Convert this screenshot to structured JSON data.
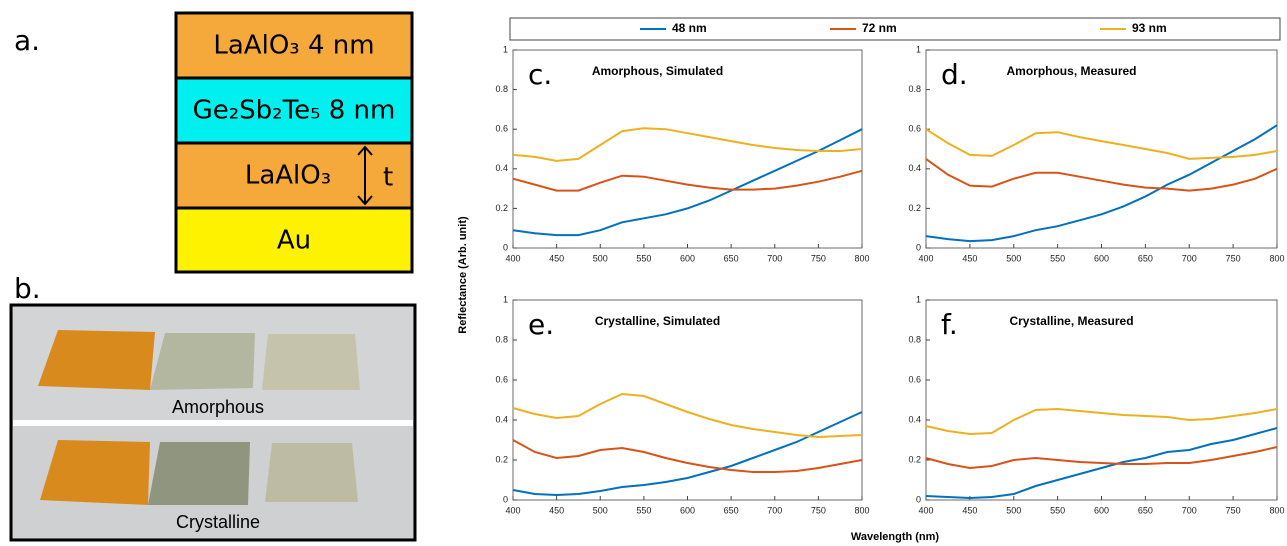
{
  "figure_labels": {
    "a": "a.",
    "b": "b."
  },
  "stack": {
    "layers": [
      "LaAlO₃ 4 nm",
      "Ge₂Sb₂Te₅ 8 nm",
      "LaAlO₃",
      "Au"
    ],
    "thickness": "t"
  },
  "photo": {
    "top": "Amorphous",
    "bottom": "Crystalline"
  },
  "legend": [
    {
      "name": "48 nm",
      "color": "#0072bd"
    },
    {
      "name": "72 nm",
      "color": "#d95319"
    },
    {
      "name": "93 nm",
      "color": "#edb120"
    }
  ],
  "ylabel": "Reflectance (Arb. unit)",
  "xlabel": "Wavelength (nm)",
  "chart_data": [
    {
      "type": "line",
      "panel": "c.",
      "title": "Amorphous, Simulated",
      "x": [
        400,
        425,
        450,
        475,
        500,
        525,
        550,
        575,
        600,
        625,
        650,
        675,
        700,
        725,
        750,
        775,
        800
      ],
      "xlim": [
        400,
        800
      ],
      "ylim": [
        0,
        1
      ],
      "xticks": [
        400,
        450,
        500,
        550,
        600,
        650,
        700,
        750,
        800
      ],
      "yticks": [
        0,
        0.2,
        0.4,
        0.6,
        0.8,
        1
      ],
      "series": [
        {
          "color": "#0072bd",
          "values": [
            0.09,
            0.075,
            0.065,
            0.065,
            0.09,
            0.13,
            0.15,
            0.17,
            0.2,
            0.24,
            0.29,
            0.34,
            0.39,
            0.44,
            0.49,
            0.545,
            0.6
          ]
        },
        {
          "color": "#d95319",
          "values": [
            0.35,
            0.32,
            0.29,
            0.29,
            0.33,
            0.365,
            0.36,
            0.34,
            0.32,
            0.305,
            0.295,
            0.295,
            0.3,
            0.315,
            0.335,
            0.36,
            0.39
          ]
        },
        {
          "color": "#edb120",
          "values": [
            0.47,
            0.46,
            0.44,
            0.45,
            0.52,
            0.59,
            0.605,
            0.6,
            0.58,
            0.56,
            0.54,
            0.52,
            0.505,
            0.495,
            0.49,
            0.49,
            0.5
          ]
        }
      ]
    },
    {
      "type": "line",
      "panel": "d.",
      "title": "Amorphous, Measured",
      "x": [
        400,
        425,
        450,
        475,
        500,
        525,
        550,
        575,
        600,
        625,
        650,
        675,
        700,
        725,
        750,
        775,
        800
      ],
      "xlim": [
        400,
        800
      ],
      "ylim": [
        0,
        1
      ],
      "xticks": [
        400,
        450,
        500,
        550,
        600,
        650,
        700,
        750,
        800
      ],
      "yticks": [
        0,
        0.2,
        0.4,
        0.6,
        0.8,
        1
      ],
      "series": [
        {
          "color": "#0072bd",
          "values": [
            0.06,
            0.045,
            0.035,
            0.04,
            0.06,
            0.09,
            0.11,
            0.14,
            0.17,
            0.21,
            0.26,
            0.32,
            0.37,
            0.43,
            0.49,
            0.55,
            0.62
          ]
        },
        {
          "color": "#d95319",
          "values": [
            0.45,
            0.37,
            0.315,
            0.31,
            0.35,
            0.38,
            0.38,
            0.36,
            0.34,
            0.32,
            0.305,
            0.3,
            0.29,
            0.3,
            0.32,
            0.35,
            0.4
          ]
        },
        {
          "color": "#edb120",
          "values": [
            0.6,
            0.53,
            0.47,
            0.465,
            0.52,
            0.58,
            0.585,
            0.56,
            0.54,
            0.52,
            0.5,
            0.48,
            0.45,
            0.455,
            0.46,
            0.47,
            0.49
          ]
        }
      ]
    },
    {
      "type": "line",
      "panel": "e.",
      "title": "Crystalline, Simulated",
      "x": [
        400,
        425,
        450,
        475,
        500,
        525,
        550,
        575,
        600,
        625,
        650,
        675,
        700,
        725,
        750,
        775,
        800
      ],
      "xlim": [
        400,
        800
      ],
      "ylim": [
        0,
        1
      ],
      "xticks": [
        400,
        450,
        500,
        550,
        600,
        650,
        700,
        750,
        800
      ],
      "yticks": [
        0,
        0.2,
        0.4,
        0.6,
        0.8,
        1
      ],
      "series": [
        {
          "color": "#0072bd",
          "values": [
            0.05,
            0.03,
            0.025,
            0.03,
            0.045,
            0.065,
            0.075,
            0.09,
            0.11,
            0.14,
            0.17,
            0.21,
            0.25,
            0.29,
            0.34,
            0.39,
            0.44
          ]
        },
        {
          "color": "#d95319",
          "values": [
            0.3,
            0.24,
            0.21,
            0.22,
            0.25,
            0.26,
            0.24,
            0.21,
            0.185,
            0.165,
            0.15,
            0.14,
            0.14,
            0.145,
            0.16,
            0.18,
            0.2
          ]
        },
        {
          "color": "#edb120",
          "values": [
            0.46,
            0.43,
            0.41,
            0.42,
            0.48,
            0.53,
            0.52,
            0.48,
            0.44,
            0.405,
            0.375,
            0.355,
            0.34,
            0.325,
            0.315,
            0.32,
            0.325
          ]
        }
      ]
    },
    {
      "type": "line",
      "panel": "f.",
      "title": "Crystalline, Measured",
      "x": [
        400,
        425,
        450,
        475,
        500,
        525,
        550,
        575,
        600,
        625,
        650,
        675,
        700,
        725,
        750,
        775,
        800
      ],
      "xlim": [
        400,
        800
      ],
      "ylim": [
        0,
        1
      ],
      "xticks": [
        400,
        450,
        500,
        550,
        600,
        650,
        700,
        750,
        800
      ],
      "yticks": [
        0,
        0.2,
        0.4,
        0.6,
        0.8,
        1
      ],
      "series": [
        {
          "color": "#0072bd",
          "values": [
            0.02,
            0.015,
            0.01,
            0.015,
            0.03,
            0.07,
            0.1,
            0.13,
            0.16,
            0.19,
            0.21,
            0.24,
            0.25,
            0.28,
            0.3,
            0.33,
            0.36
          ]
        },
        {
          "color": "#d95319",
          "values": [
            0.21,
            0.18,
            0.16,
            0.17,
            0.2,
            0.21,
            0.2,
            0.19,
            0.185,
            0.18,
            0.18,
            0.185,
            0.185,
            0.2,
            0.22,
            0.24,
            0.265
          ]
        },
        {
          "color": "#edb120",
          "values": [
            0.37,
            0.345,
            0.33,
            0.335,
            0.4,
            0.45,
            0.455,
            0.445,
            0.435,
            0.425,
            0.42,
            0.415,
            0.4,
            0.405,
            0.42,
            0.435,
            0.455
          ]
        }
      ]
    }
  ]
}
